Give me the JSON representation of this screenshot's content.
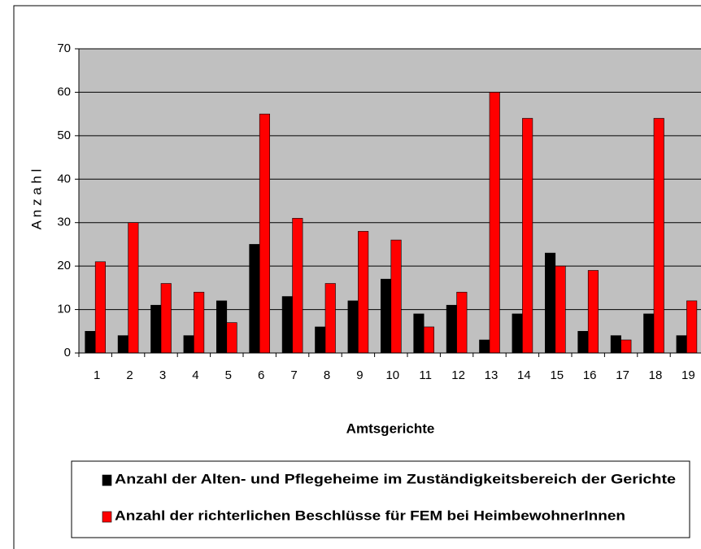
{
  "chart_data": {
    "type": "bar",
    "x_label": "Amtsgerichte",
    "y_label": "A n z a h l",
    "categories": [
      "1",
      "2",
      "3",
      "4",
      "5",
      "6",
      "7",
      "8",
      "9",
      "10",
      "11",
      "12",
      "13",
      "14",
      "15",
      "16",
      "17",
      "18",
      "19"
    ],
    "series": [
      {
        "name": "Anzahl der Alten- und Pflegeheime im Zuständigkeitsbereich der Gerichte",
        "color": "#000000",
        "values": [
          5,
          4,
          11,
          4,
          12,
          25,
          13,
          6,
          12,
          17,
          9,
          11,
          3,
          9,
          23,
          5,
          4,
          9,
          4
        ]
      },
      {
        "name": "Anzahl der richterlichen Beschlüsse für FEM bei HeimbewohnerInnen",
        "color": "#ff0000",
        "values": [
          21,
          30,
          16,
          14,
          7,
          55,
          31,
          16,
          28,
          26,
          6,
          14,
          60,
          54,
          20,
          19,
          3,
          54,
          12
        ]
      }
    ],
    "ylim": [
      0,
      70
    ],
    "yticks": [
      0,
      10,
      20,
      30,
      40,
      50,
      60,
      70
    ],
    "grid": true,
    "plot_background": "#c0c0c0",
    "legend": "bottom"
  }
}
